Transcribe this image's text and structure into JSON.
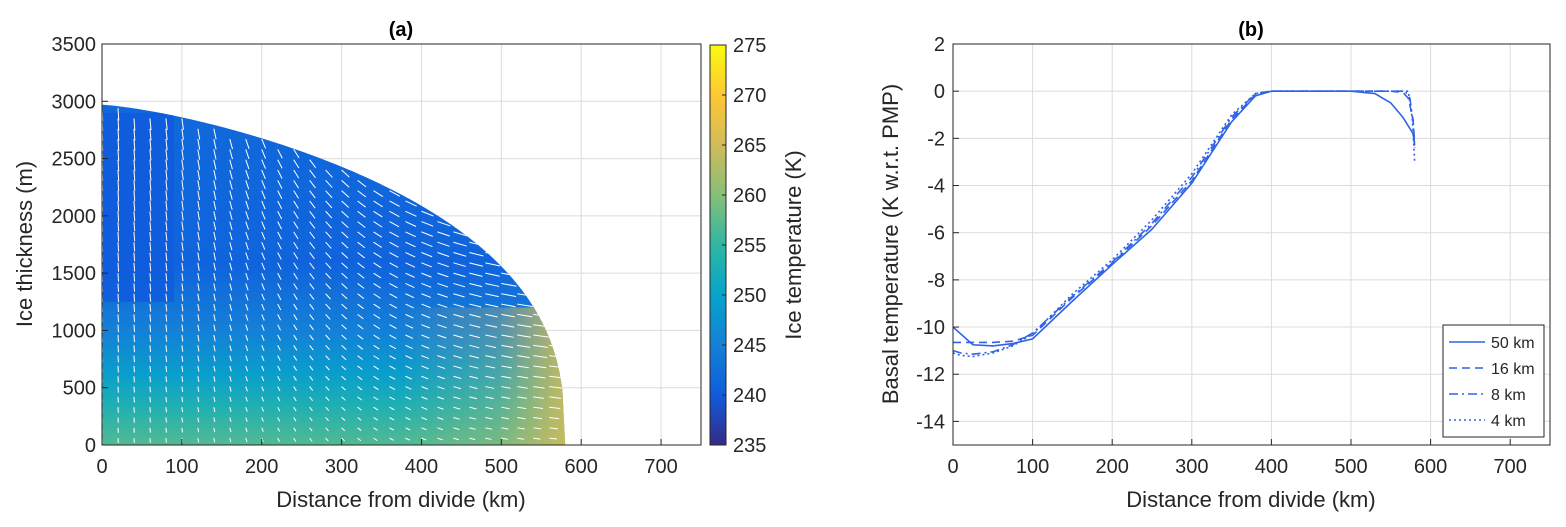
{
  "chart_data": [
    {
      "type": "heatmap",
      "title": "(a)",
      "xlabel": "Distance from divide (km)",
      "ylabel": "Ice thickness (m)",
      "xlim": [
        0,
        750
      ],
      "ylim": [
        0,
        3500
      ],
      "xticks": [
        "0",
        "100",
        "200",
        "300",
        "400",
        "500",
        "600",
        "700"
      ],
      "yticks": [
        "0",
        "500",
        "1000",
        "1500",
        "2000",
        "2500",
        "3000",
        "3500"
      ],
      "grid": true,
      "ice_margin_km": 580,
      "divide_thickness_m": 2970,
      "colorbar": {
        "label": "Ice temperature (K)",
        "range": [
          235,
          275
        ],
        "ticks": [
          "235",
          "240",
          "245",
          "250",
          "255",
          "260",
          "265",
          "270",
          "275"
        ],
        "colormap": "parula",
        "colors": [
          "#352a87",
          "#0f5cdd",
          "#1481d6",
          "#06a4ca",
          "#2eb7a4",
          "#87bf77",
          "#d1bb59",
          "#fec832",
          "#f9fb0e"
        ]
      },
      "temperature_field": {
        "surface_K": 242,
        "core_min_K": 240,
        "bed_divide_K": 257,
        "bed_margin_K": 273
      },
      "quiver_color": "#ffffff"
    },
    {
      "type": "line",
      "title": "(b)",
      "xlabel": "Distance from divide (km)",
      "ylabel": "Basal temperature (K w.r.t. PMP)",
      "xlim": [
        0,
        750
      ],
      "ylim": [
        -15,
        2
      ],
      "xticks": [
        "0",
        "100",
        "200",
        "300",
        "400",
        "500",
        "600",
        "700"
      ],
      "yticks": [
        "2",
        "0",
        "-2",
        "-4",
        "-6",
        "-8",
        "-10",
        "-12",
        "-14"
      ],
      "grid": true,
      "legend_position": "bottom-right",
      "line_color": "#2f63e8",
      "series": [
        {
          "name": "50 km",
          "dash": "solid",
          "x": [
            0,
            25,
            50,
            75,
            100,
            150,
            200,
            250,
            300,
            350,
            380,
            400,
            450,
            500,
            530,
            550,
            565,
            578,
            580
          ],
          "y": [
            -10.0,
            -10.75,
            -10.8,
            -10.7,
            -10.5,
            -8.9,
            -7.35,
            -5.85,
            -3.9,
            -1.3,
            -0.2,
            0,
            0,
            0,
            -0.1,
            -0.5,
            -1.1,
            -1.8,
            -2.3
          ]
        },
        {
          "name": "16 km",
          "dash": "dashed",
          "x": [
            0,
            25,
            50,
            75,
            100,
            150,
            200,
            250,
            300,
            350,
            380,
            400,
            450,
            500,
            550,
            565,
            572,
            578,
            580
          ],
          "y": [
            -10.65,
            -10.65,
            -10.65,
            -10.6,
            -10.35,
            -8.75,
            -7.3,
            -5.7,
            -3.8,
            -1.2,
            -0.15,
            0,
            0,
            0,
            0,
            -0.05,
            -0.3,
            -1.2,
            -2.2
          ]
        },
        {
          "name": "8 km",
          "dash": "dashdot",
          "x": [
            0,
            10,
            25,
            50,
            75,
            100,
            150,
            200,
            250,
            300,
            350,
            380,
            400,
            450,
            500,
            550,
            568,
            574,
            578,
            580
          ],
          "y": [
            -11.0,
            -11.1,
            -11.15,
            -11.05,
            -10.75,
            -10.25,
            -8.7,
            -7.25,
            -5.6,
            -3.65,
            -1.1,
            -0.1,
            0,
            0,
            0,
            0,
            0,
            -0.3,
            -1.3,
            -2.4
          ]
        },
        {
          "name": "4 km",
          "dash": "dotted",
          "x": [
            0,
            10,
            25,
            50,
            75,
            100,
            150,
            200,
            250,
            300,
            350,
            380,
            400,
            450,
            500,
            550,
            572,
            577,
            580
          ],
          "y": [
            -11.1,
            -11.2,
            -11.25,
            -11.1,
            -10.8,
            -10.3,
            -8.6,
            -7.15,
            -5.45,
            -3.5,
            -1.0,
            -0.1,
            0,
            0,
            0,
            0,
            0,
            -1.2,
            -3.0
          ]
        }
      ]
    }
  ]
}
